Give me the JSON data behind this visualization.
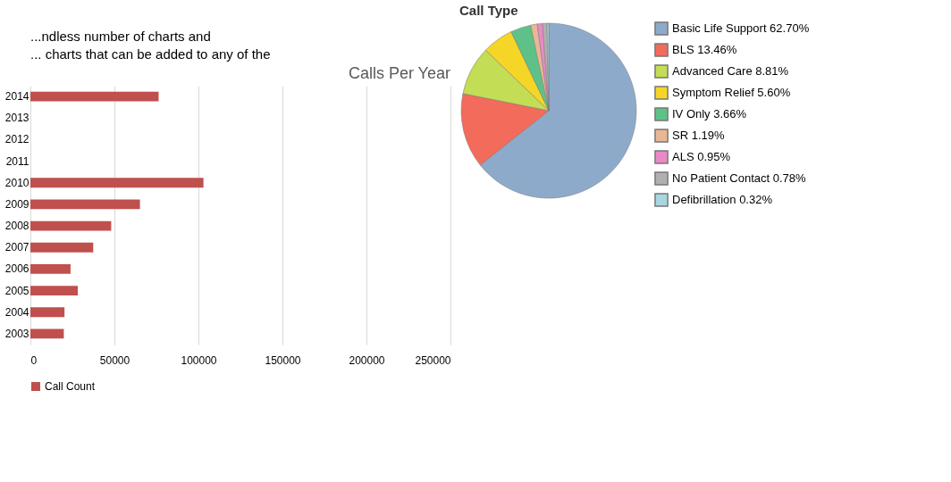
{
  "chart_data": [
    {
      "type": "bar",
      "title": "Calls Per Year",
      "orientation": "horizontal",
      "categories": [
        "2014",
        "2013",
        "2012",
        "2011",
        "2010",
        "2009",
        "2008",
        "2007",
        "2006",
        "2005",
        "2004",
        "2003"
      ],
      "series": [
        {
          "name": "Call Count",
          "color": "#c0504d",
          "values": [
            76300,
            null,
            null,
            null,
            103000,
            65200,
            48100,
            37400,
            23900,
            28200,
            20300,
            19900
          ]
        }
      ],
      "xlim": [
        0,
        250000
      ],
      "xticks": [
        0,
        50000,
        100000,
        150000,
        200000,
        250000
      ],
      "grid": "x",
      "legend": "bottom",
      "annotations": [
        "...ndless number of charts and",
        "... charts that can be added to any of the"
      ]
    },
    {
      "type": "pie",
      "title": "Call Type",
      "categories": [
        "Basic Life Support",
        "BLS",
        "Advanced Care",
        "Symptom Relief",
        "IV Only",
        "SR",
        "ALS",
        "No Patient Contact",
        "Defibrillation"
      ],
      "values": [
        62.7,
        13.46,
        8.81,
        5.6,
        3.66,
        1.19,
        0.95,
        0.78,
        0.32
      ],
      "colors": [
        "#8eaacb",
        "#f26b5b",
        "#c3dd55",
        "#f5d627",
        "#5ec288",
        "#e8b795",
        "#e98ac7",
        "#b0b0b0",
        "#a9d6e0"
      ],
      "value_labels": [
        "62.70%",
        "13.46%",
        "8.81%",
        "5.60%",
        "3.66%",
        "1.19%",
        "0.95%",
        "0.78%",
        "0.32%"
      ],
      "legend": "right"
    }
  ]
}
